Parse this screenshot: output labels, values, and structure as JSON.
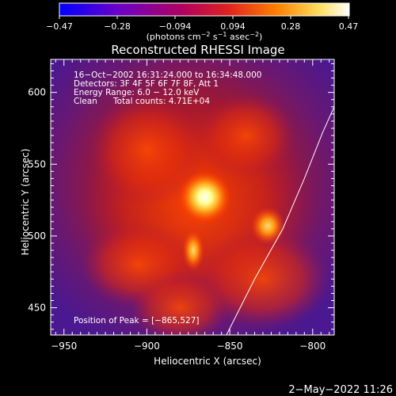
{
  "colorbar": {
    "ticks": [
      "−0.47",
      "−0.28",
      "−0.094",
      "0.094",
      "0.28",
      "0.47"
    ],
    "units_text": "(photons cm",
    "units_exp1": "−2",
    "units_mid": " s",
    "units_exp2": "−1",
    "units_tail": " asec",
    "units_exp3": "−2",
    "units_close": ")",
    "range": [
      -0.47,
      0.47
    ],
    "colors": [
      "#0000ff",
      "#6a00c8",
      "#c00050",
      "#ff3000",
      "#ff9000",
      "#ffff80",
      "#ffffff"
    ]
  },
  "info": {
    "line1": "16−Oct−2002 16:31:24.000 to 16:34:48.000",
    "line2": "Detectors: 3F 4F 5F 6F 7F 8F, Att 1",
    "line3": "Energy Range: 6.0 − 12.0 keV",
    "line4_left": "Clean",
    "line4_right": "Total counts: 4.71E+04",
    "peak": "Position of Peak = [−865,527]"
  },
  "footer": {
    "date": "2−May−2022 11:26"
  },
  "chart_data": {
    "type": "heatmap",
    "title": "Reconstructed RHESSI Image",
    "xlabel": "Heliocentric X (arcsec)",
    "ylabel": "Heliocentric Y (arcsec)",
    "xlim": [
      -958,
      -787
    ],
    "ylim": [
      431,
      623
    ],
    "x_ticks": [
      -950,
      -900,
      -850,
      -800
    ],
    "x_tick_labels": [
      "−950",
      "−900",
      "−850",
      "−800"
    ],
    "y_ticks": [
      450,
      500,
      550,
      600
    ],
    "y_tick_labels": [
      "450",
      "500",
      "550",
      "600"
    ],
    "peaks": [
      {
        "x": -865,
        "y": 527,
        "intensity": 0.47
      },
      {
        "x": -827,
        "y": 507,
        "intensity": 0.34
      },
      {
        "x": -872,
        "y": 490,
        "intensity": 0.26
      }
    ],
    "limb_curve": [
      [
        -852,
        431
      ],
      [
        -835,
        470
      ],
      [
        -818,
        505
      ],
      [
        -805,
        540
      ],
      [
        -794,
        572
      ],
      [
        -787,
        590
      ]
    ]
  }
}
